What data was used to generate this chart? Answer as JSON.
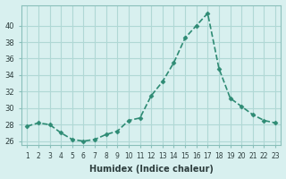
{
  "x": [
    1,
    2,
    3,
    4,
    5,
    6,
    7,
    8,
    9,
    10,
    11,
    12,
    13,
    14,
    15,
    16,
    17,
    18,
    19,
    20,
    21,
    22,
    23
  ],
  "y": [
    27.8,
    28.2,
    28.0,
    27.0,
    26.2,
    26.0,
    26.2,
    26.8,
    27.2,
    28.5,
    28.8,
    31.5,
    33.2,
    35.5,
    38.5,
    40.0,
    41.5,
    34.8,
    31.2,
    30.2,
    29.2,
    28.5,
    28.2
  ],
  "line_color": "#2e8b74",
  "marker": "D",
  "marker_size": 2.5,
  "bg_color": "#d8f0ef",
  "grid_color": "#b0d8d5",
  "xlabel": "Humidex (Indice chaleur)",
  "yticks": [
    26,
    28,
    30,
    32,
    34,
    36,
    38,
    40
  ],
  "ylim": [
    25.5,
    42.5
  ],
  "xlim": [
    0.5,
    23.5
  ]
}
